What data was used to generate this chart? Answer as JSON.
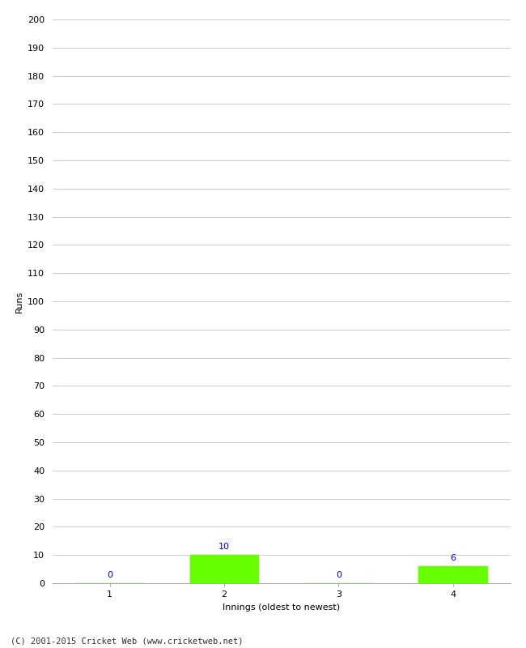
{
  "categories": [
    1,
    2,
    3,
    4
  ],
  "values": [
    0,
    10,
    0,
    6
  ],
  "bar_color": "#66ff00",
  "bar_edge_color": "#66ff00",
  "label_color": "#0000cc",
  "xlabel": "Innings (oldest to newest)",
  "ylabel": "Runs",
  "ylim": [
    0,
    200
  ],
  "yticks": [
    0,
    10,
    20,
    30,
    40,
    50,
    60,
    70,
    80,
    90,
    100,
    110,
    120,
    130,
    140,
    150,
    160,
    170,
    180,
    190,
    200
  ],
  "background_color": "#ffffff",
  "grid_color": "#cccccc",
  "footer": "(C) 2001-2015 Cricket Web (www.cricketweb.net)"
}
